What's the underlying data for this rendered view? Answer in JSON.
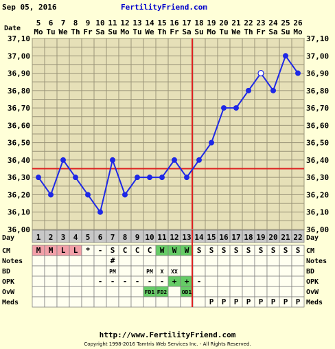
{
  "header": {
    "date": "Sep 05, 2016",
    "site": "FertilityFriend.com"
  },
  "footer": {
    "url": "http://www.FertilityFriend.com",
    "copyright": "Copyright 1998-2016 Tamtris Web Services Inc. - All Rights Reserved."
  },
  "labels": {
    "date": "Date",
    "day": "Day",
    "cm": "CM",
    "notes": "Notes",
    "bd": "BD",
    "opk": "OPK",
    "ovw": "OvW",
    "meds": "Meds"
  },
  "colors": {
    "background": "#FFFFD8",
    "plot_bg": "#E6E0B8",
    "grid": "#9A9478",
    "line": "#1E28E6",
    "coverline": "#DD2020",
    "cm_red": "#F2A0A8",
    "cm_green": "#66CC66",
    "day_row": "#C8C8C8",
    "table_bg": "#FFFFF0"
  },
  "chart_data": {
    "type": "line",
    "title": "",
    "ylim": [
      36.0,
      37.1
    ],
    "y_ticks": [
      "36,00",
      "36,10",
      "36,20",
      "36,30",
      "36,40",
      "36,50",
      "36,60",
      "36,70",
      "36,80",
      "36,90",
      "37,00",
      "37,10"
    ],
    "dates": [
      "5",
      "6",
      "7",
      "8",
      "9",
      "10",
      "11",
      "12",
      "13",
      "14",
      "15",
      "16",
      "17",
      "18",
      "19",
      "20",
      "21",
      "22",
      "23",
      "24",
      "25",
      "26"
    ],
    "weekdays": [
      "Mo",
      "Tu",
      "We",
      "Th",
      "Fr",
      "Sa",
      "Su",
      "Mo",
      "Tu",
      "We",
      "Th",
      "Fr",
      "Sa",
      "Su",
      "Mo",
      "Tu",
      "We",
      "Th",
      "Fr",
      "Sa",
      "Su",
      "Mo"
    ],
    "cycle_days": [
      "1",
      "2",
      "3",
      "4",
      "5",
      "6",
      "7",
      "8",
      "9",
      "10",
      "11",
      "12",
      "13",
      "14",
      "15",
      "16",
      "17",
      "18",
      "19",
      "20",
      "21",
      "22"
    ],
    "temps": [
      36.3,
      36.2,
      36.4,
      36.3,
      36.2,
      36.1,
      36.4,
      36.2,
      36.3,
      36.3,
      36.3,
      36.4,
      36.3,
      36.4,
      36.5,
      36.7,
      36.7,
      36.8,
      36.9,
      36.8,
      37.0,
      36.9
    ],
    "open_points": [
      18
    ],
    "coverline": 36.35,
    "ovulation_day": 13,
    "rows": {
      "cm": [
        "M",
        "M",
        "L",
        "L",
        "*",
        "-",
        "S",
        "C",
        "C",
        "C",
        "W",
        "W",
        "W",
        "S",
        "S",
        "S",
        "S",
        "S",
        "S",
        "S",
        "S",
        "S"
      ],
      "notes": [
        "",
        "",
        "",
        "",
        "",
        "",
        "#",
        "",
        "",
        "",
        "",
        "",
        "",
        "",
        "",
        "",
        "",
        "",
        "",
        "",
        "",
        ""
      ],
      "bd": [
        "",
        "",
        "",
        "",
        "",
        "",
        "PM",
        "",
        "",
        "PM",
        "X",
        "XX",
        "",
        "",
        "",
        "",
        "",
        "",
        "",
        "",
        "",
        ""
      ],
      "opk": [
        "",
        "",
        "",
        "",
        "",
        "-",
        "-",
        "-",
        "-",
        "-",
        "-",
        "+",
        "+",
        "-",
        "",
        "",
        "",
        "",
        "",
        "",
        "",
        ""
      ],
      "ovw": [
        "",
        "",
        "",
        "",
        "",
        "",
        "",
        "",
        "",
        "FD1",
        "FD2",
        "",
        "OD1",
        "",
        "",
        "",
        "",
        "",
        "",
        "",
        "",
        ""
      ],
      "meds": [
        "",
        "",
        "",
        "",
        "",
        "",
        "",
        "",
        "",
        "",
        "",
        "",
        "",
        "",
        "P",
        "P",
        "P",
        "P",
        "P",
        "P",
        "P",
        "P"
      ]
    }
  }
}
